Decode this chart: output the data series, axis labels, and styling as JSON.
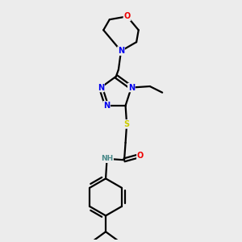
{
  "background_color": "#ececec",
  "bond_color": "#000000",
  "atom_colors": {
    "N": "#0000ee",
    "O": "#ee0000",
    "S": "#cccc00",
    "C": "#000000",
    "H": "#4a8a8a"
  },
  "figsize": [
    3.0,
    3.0
  ],
  "dpi": 100
}
